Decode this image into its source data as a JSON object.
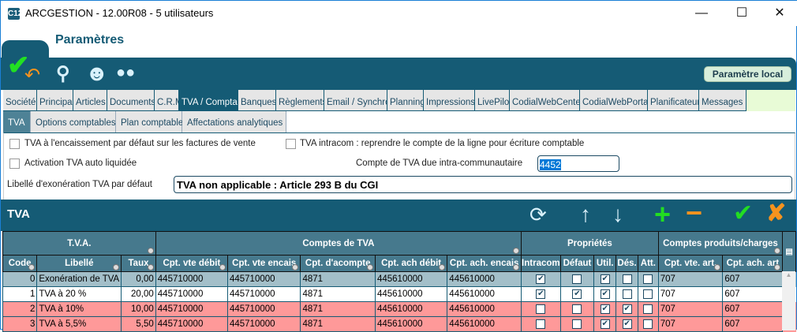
{
  "window": {
    "title": "ARCGESTION - 12.00R08 - 5 utilisateurs",
    "app_icon": "C12"
  },
  "header": {
    "title": "Paramètres",
    "local_button": "Paramètre local"
  },
  "tabs": [
    "Société",
    "Principal",
    "Articles",
    "Documents",
    "C.R.M",
    "TVA / Compta",
    "Banques",
    "Règlements",
    "Email / Synchro",
    "Planning",
    "Impressions",
    "LivePilot",
    "CodialWebCenter",
    "CodialWebPortail",
    "Planificateur",
    "Messages"
  ],
  "active_tab": "TVA / Compta",
  "subtabs": [
    "TVA",
    "Options comptables",
    "Plan comptable",
    "Affectations analytiques"
  ],
  "active_subtab": "TVA",
  "form": {
    "tva_encaissement_label": "TVA à l'encaissement par défaut sur les factures de vente",
    "tva_encaissement": false,
    "tva_intracom_label": "TVA intracom : reprendre le compte de la ligne pour écriture comptable",
    "tva_intracom": false,
    "auto_liquidee_label": "Activation TVA auto liquidée",
    "auto_liquidee": false,
    "compte_intra_label": "Compte de TVA due intra-communautaire",
    "compte_intra": "4452",
    "libelle_exo_label": "Libellé d'exonération TVA par défaut",
    "libelle_exo": "TVA non applicable : Article 293 B du CGI"
  },
  "grid": {
    "title": "TVA",
    "groups": [
      "T.V.A.",
      "Comptes de TVA",
      "Propriétés",
      "Comptes produits/charges"
    ],
    "columns": [
      "Code",
      "Libellé",
      "Taux",
      "Cpt. vte débit",
      "Cpt. vte encais",
      "Cpt. d'acompte",
      "Cpt. ach débit",
      "Cpt. ach. encais",
      "Intracom",
      "Défaut",
      "Util.",
      "Dés.",
      "Att.",
      "Cpt. vte. art.",
      "Cpt. ach. art"
    ],
    "rows": [
      {
        "code": "0",
        "libelle": "Exonération de TVA",
        "taux": "0,00",
        "vte_debit": "445710000",
        "vte_encais": "445710000",
        "acompte": "4871",
        "ach_debit": "445610000",
        "ach_encais": "445610000",
        "intracom": true,
        "defaut": false,
        "util": true,
        "des": false,
        "att": false,
        "vte_art": "707",
        "ach_art": "607",
        "style": "selected"
      },
      {
        "code": "1",
        "libelle": "TVA à 20 %",
        "taux": "20,00",
        "vte_debit": "445710000",
        "vte_encais": "445710000",
        "acompte": "4871",
        "ach_debit": "445610000",
        "ach_encais": "445610000",
        "intracom": true,
        "defaut": true,
        "util": true,
        "des": false,
        "att": false,
        "vte_art": "707",
        "ach_art": "607",
        "style": "normal"
      },
      {
        "code": "2",
        "libelle": "TVA à 10%",
        "taux": "10,00",
        "vte_debit": "445710000",
        "vte_encais": "445710000",
        "acompte": "4871",
        "ach_debit": "445610000",
        "ach_encais": "445610000",
        "intracom": false,
        "defaut": false,
        "util": true,
        "des": true,
        "att": false,
        "vte_art": "707",
        "ach_art": "607",
        "style": "disabled"
      },
      {
        "code": "3",
        "libelle": "TVA à 5,5%",
        "taux": "5,50",
        "vte_debit": "445710000",
        "vte_encais": "445710000",
        "acompte": "4871",
        "ach_debit": "445610000",
        "ach_encais": "445610000",
        "intracom": false,
        "defaut": false,
        "util": true,
        "des": true,
        "att": false,
        "vte_art": "707",
        "ach_art": "607",
        "style": "disabled"
      }
    ]
  },
  "colors": {
    "brand": "#155b75",
    "header_cell": "#46798d",
    "selected_row": "#a3bfc9",
    "disabled_row": "#fe9999",
    "add": "#22dd22",
    "remove": "#f7931e"
  }
}
